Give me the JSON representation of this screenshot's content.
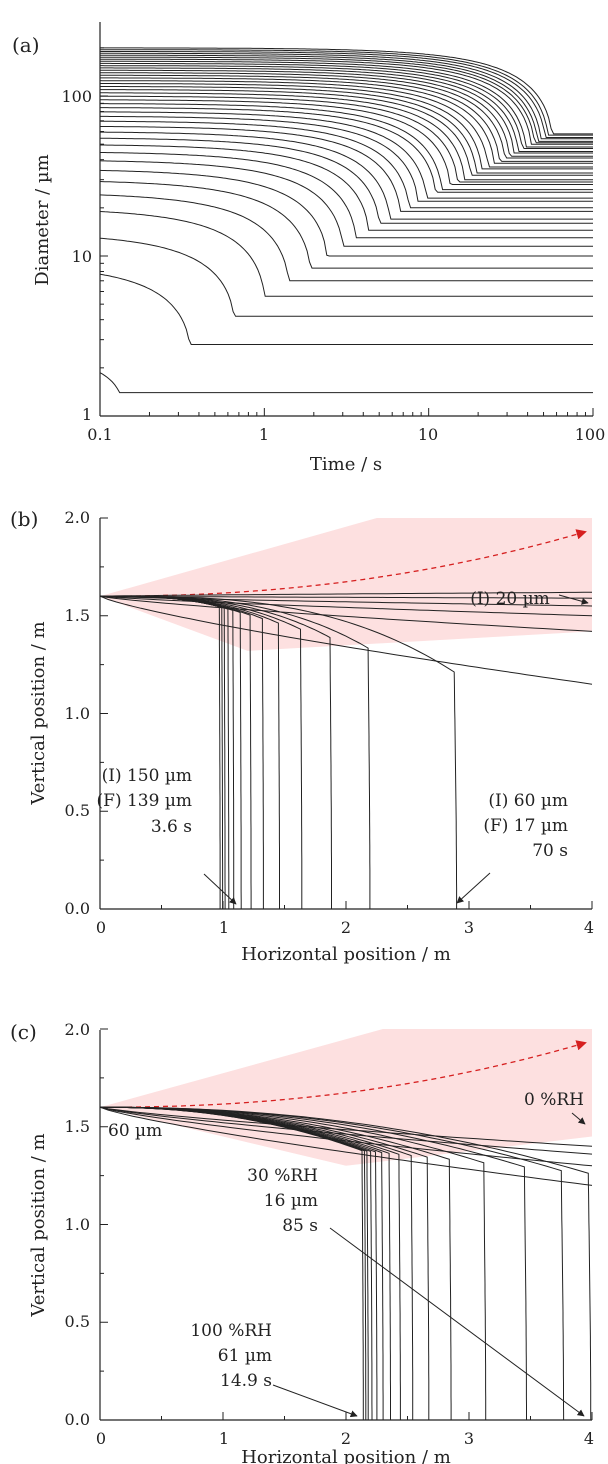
{
  "chart_data": [
    {
      "type": "line",
      "panel_label": "(a)",
      "xlabel": "Time / s",
      "ylabel": "Diameter / µm",
      "xscale": "log",
      "yscale": "log",
      "xlim": [
        0.1,
        100
      ],
      "ylim": [
        1,
        300
      ],
      "xticks": [
        0.1,
        1,
        10,
        100
      ],
      "xtick_labels": [
        "0.1",
        "1",
        "10",
        "100"
      ],
      "yticks": [
        1,
        10,
        100
      ],
      "ytick_labels": [
        "1",
        "10",
        "100"
      ],
      "grid": false,
      "series_description": "Diameter vs time for initial sizes 2.7–200 µm; each decays and levels at a final equilibrium size",
      "series": [
        {
          "initial_diameter": 2.7,
          "final_diameter": 1.4,
          "plateau_time": 0.13
        },
        {
          "initial_diameter": 9,
          "final_diameter": 2.8,
          "plateau_time": 0.35
        },
        {
          "initial_diameter": 14,
          "final_diameter": 4.2,
          "plateau_time": 0.65
        },
        {
          "initial_diameter": 20,
          "final_diameter": 5.6,
          "plateau_time": 1.0
        },
        {
          "initial_diameter": 25,
          "final_diameter": 7.0,
          "plateau_time": 1.4
        },
        {
          "initial_diameter": 30,
          "final_diameter": 8.4,
          "plateau_time": 1.9
        },
        {
          "initial_diameter": 35,
          "final_diameter": 10,
          "plateau_time": 2.4
        },
        {
          "initial_diameter": 40,
          "final_diameter": 11.5,
          "plateau_time": 3.0
        },
        {
          "initial_diameter": 45,
          "final_diameter": 13,
          "plateau_time": 3.6
        },
        {
          "initial_diameter": 50,
          "final_diameter": 14.5,
          "plateau_time": 4.3
        },
        {
          "initial_diameter": 55,
          "final_diameter": 16,
          "plateau_time": 5.0
        },
        {
          "initial_diameter": 60,
          "final_diameter": 17,
          "plateau_time": 5.8
        },
        {
          "initial_diameter": 65,
          "final_diameter": 19,
          "plateau_time": 6.7
        },
        {
          "initial_diameter": 70,
          "final_diameter": 20,
          "plateau_time": 7.6
        },
        {
          "initial_diameter": 75,
          "final_diameter": 22,
          "plateau_time": 8.6
        },
        {
          "initial_diameter": 80,
          "final_diameter": 23,
          "plateau_time": 9.7
        },
        {
          "initial_diameter": 85,
          "final_diameter": 25,
          "plateau_time": 11
        },
        {
          "initial_diameter": 90,
          "final_diameter": 26,
          "plateau_time": 12
        },
        {
          "initial_diameter": 95,
          "final_diameter": 28,
          "plateau_time": 13.5
        },
        {
          "initial_diameter": 100,
          "final_diameter": 29,
          "plateau_time": 15
        },
        {
          "initial_diameter": 105,
          "final_diameter": 30,
          "plateau_time": 16.5
        },
        {
          "initial_diameter": 110,
          "final_diameter": 32,
          "plateau_time": 18
        },
        {
          "initial_diameter": 115,
          "final_diameter": 33,
          "plateau_time": 19.5
        },
        {
          "initial_diameter": 120,
          "final_diameter": 35,
          "plateau_time": 21
        },
        {
          "initial_diameter": 125,
          "final_diameter": 36,
          "plateau_time": 23
        },
        {
          "initial_diameter": 130,
          "final_diameter": 38,
          "plateau_time": 25
        },
        {
          "initial_diameter": 135,
          "final_diameter": 39,
          "plateau_time": 27
        },
        {
          "initial_diameter": 140,
          "final_diameter": 41,
          "plateau_time": 29
        },
        {
          "initial_diameter": 145,
          "final_diameter": 42,
          "plateau_time": 31
        },
        {
          "initial_diameter": 150,
          "final_diameter": 44,
          "plateau_time": 33
        },
        {
          "initial_diameter": 155,
          "final_diameter": 45,
          "plateau_time": 35
        },
        {
          "initial_diameter": 160,
          "final_diameter": 47,
          "plateau_time": 37
        },
        {
          "initial_diameter": 165,
          "final_diameter": 48,
          "plateau_time": 39
        },
        {
          "initial_diameter": 170,
          "final_diameter": 50,
          "plateau_time": 42
        },
        {
          "initial_diameter": 175,
          "final_diameter": 51,
          "plateau_time": 44
        },
        {
          "initial_diameter": 180,
          "final_diameter": 52,
          "plateau_time": 46
        },
        {
          "initial_diameter": 185,
          "final_diameter": 54,
          "plateau_time": 48
        },
        {
          "initial_diameter": 190,
          "final_diameter": 55,
          "plateau_time": 51
        },
        {
          "initial_diameter": 195,
          "final_diameter": 57,
          "plateau_time": 53
        },
        {
          "initial_diameter": 200,
          "final_diameter": 58,
          "plateau_time": 56
        }
      ]
    },
    {
      "type": "line",
      "panel_label": "(b)",
      "xlabel": "Horizontal position / m",
      "ylabel": "Vertical position / m",
      "xlim": [
        0,
        4
      ],
      "ylim": [
        0,
        2.0
      ],
      "xticks": [
        0,
        1,
        2,
        3,
        4
      ],
      "xtick_labels": [
        "0",
        "1",
        "2",
        "3",
        "4"
      ],
      "yticks": [
        0,
        0.5,
        1.0,
        1.5,
        2.0
      ],
      "ytick_labels": [
        "0.0",
        "0.5",
        "1.0",
        "1.5",
        "2.0"
      ],
      "grid": false,
      "shaded_region_color": "#fde0e0",
      "centerline_color": "#d62020",
      "origin": [
        0,
        1.6
      ],
      "landing_x": [
        0.97,
        0.99,
        1.01,
        1.04,
        1.08,
        1.14,
        1.22,
        1.32,
        1.45,
        1.63,
        1.87,
        2.18,
        2.88
      ],
      "airborne_end_y": [
        1.15,
        1.42,
        1.5,
        1.55,
        1.59,
        1.62
      ],
      "annotations": [
        {
          "lines": [
            "(I) 20 µm"
          ]
        },
        {
          "lines": [
            "(I) 150 µm",
            "(F) 139 µm",
            "3.6 s"
          ]
        },
        {
          "lines": [
            "(I) 60 µm",
            "(F) 17 µm",
            "70 s"
          ]
        }
      ]
    },
    {
      "type": "line",
      "panel_label": "(c)",
      "xlabel": "Horizontal position / m",
      "ylabel": "Vertical position / m",
      "xlim": [
        0,
        4
      ],
      "ylim": [
        0,
        2.0
      ],
      "xticks": [
        0,
        1,
        2,
        3,
        4
      ],
      "xtick_labels": [
        "0",
        "1",
        "2",
        "3",
        "4"
      ],
      "yticks": [
        0,
        0.5,
        1.0,
        1.5,
        2.0
      ],
      "ytick_labels": [
        "0.0",
        "0.5",
        "1.0",
        "1.5",
        "2.0"
      ],
      "grid": false,
      "shaded_region_color": "#fde0e0",
      "centerline_color": "#d62020",
      "origin": [
        0,
        1.6
      ],
      "landing_x": [
        2.13,
        2.15,
        2.17,
        2.2,
        2.24,
        2.29,
        2.35,
        2.43,
        2.53,
        2.66,
        2.84,
        3.12,
        3.45,
        3.75,
        3.97
      ],
      "airborne_end_y": [
        1.2,
        1.3,
        1.36,
        1.4
      ],
      "annotations": [
        {
          "lines": [
            "60 µm"
          ]
        },
        {
          "lines": [
            "0 %RH"
          ]
        },
        {
          "lines": [
            "30 %RH",
            "16 µm",
            "85 s"
          ]
        },
        {
          "lines": [
            "100 %RH",
            "61 µm",
            "14.9 s"
          ]
        }
      ]
    }
  ]
}
